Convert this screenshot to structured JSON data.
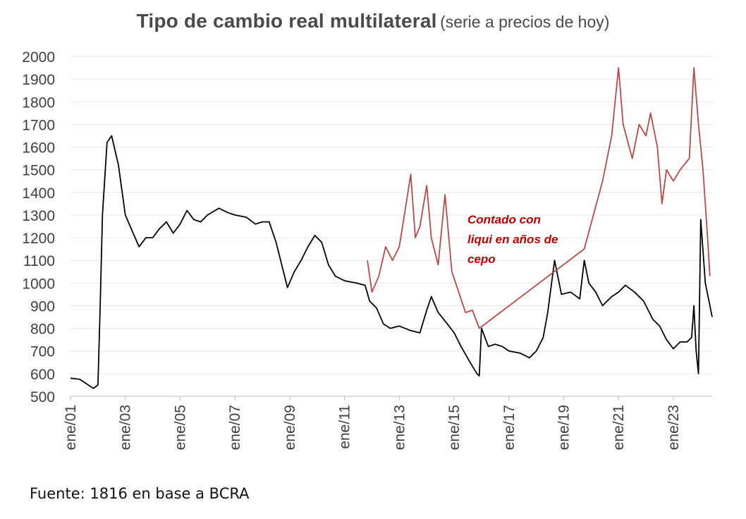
{
  "title": "Tipo de cambio real multilateral",
  "subtitle": "(serie a precios de hoy)",
  "source": "Fuente: 1816 en base a BCRA",
  "chart_data": {
    "type": "line",
    "title": "Tipo de cambio real multilateral",
    "subtitle": "(serie a precios de hoy)",
    "xlabel": "",
    "ylabel": "",
    "ylim": [
      500,
      2000
    ],
    "xlim": [
      "2001-01",
      "2024-06"
    ],
    "yticks": [
      500,
      600,
      700,
      800,
      900,
      1000,
      1100,
      1200,
      1300,
      1400,
      1500,
      1600,
      1700,
      1800,
      1900,
      2000
    ],
    "xticks": [
      "ene/01",
      "ene/03",
      "ene/05",
      "ene/07",
      "ene/09",
      "ene/11",
      "ene/13",
      "ene/15",
      "ene/17",
      "ene/19",
      "ene/21",
      "ene/23"
    ],
    "xtick_dates": [
      "2001-01",
      "2003-01",
      "2005-01",
      "2007-01",
      "2009-01",
      "2011-01",
      "2013-01",
      "2015-01",
      "2017-01",
      "2019-01",
      "2021-01",
      "2023-01"
    ],
    "grid": true,
    "legend": "none",
    "annotation": {
      "text_lines": [
        "Contado con",
        "liqui en años de",
        "cepo"
      ],
      "color": "#c00000"
    },
    "series": [
      {
        "color": "#000000",
        "points": [
          [
            "2001-01",
            580
          ],
          [
            "2001-05",
            575
          ],
          [
            "2001-08",
            555
          ],
          [
            "2001-11",
            535
          ],
          [
            "2002-01",
            550
          ],
          [
            "2002-02",
            900
          ],
          [
            "2002-03",
            1300
          ],
          [
            "2002-05",
            1620
          ],
          [
            "2002-07",
            1650
          ],
          [
            "2002-10",
            1520
          ],
          [
            "2003-01",
            1300
          ],
          [
            "2003-04",
            1230
          ],
          [
            "2003-07",
            1160
          ],
          [
            "2003-10",
            1200
          ],
          [
            "2004-01",
            1200
          ],
          [
            "2004-04",
            1240
          ],
          [
            "2004-07",
            1270
          ],
          [
            "2004-10",
            1220
          ],
          [
            "2005-01",
            1260
          ],
          [
            "2005-04",
            1320
          ],
          [
            "2005-07",
            1280
          ],
          [
            "2005-10",
            1270
          ],
          [
            "2006-01",
            1300
          ],
          [
            "2006-06",
            1330
          ],
          [
            "2006-10",
            1310
          ],
          [
            "2007-01",
            1300
          ],
          [
            "2007-06",
            1290
          ],
          [
            "2007-10",
            1260
          ],
          [
            "2008-01",
            1270
          ],
          [
            "2008-04",
            1270
          ],
          [
            "2008-07",
            1180
          ],
          [
            "2008-10",
            1060
          ],
          [
            "2008-12",
            980
          ],
          [
            "2009-03",
            1050
          ],
          [
            "2009-06",
            1100
          ],
          [
            "2009-09",
            1160
          ],
          [
            "2009-12",
            1210
          ],
          [
            "2010-03",
            1180
          ],
          [
            "2010-06",
            1080
          ],
          [
            "2010-09",
            1030
          ],
          [
            "2011-01",
            1010
          ],
          [
            "2011-06",
            1000
          ],
          [
            "2011-10",
            990
          ],
          [
            "2011-12",
            920
          ],
          [
            "2012-03",
            890
          ],
          [
            "2012-06",
            820
          ],
          [
            "2012-09",
            800
          ],
          [
            "2013-01",
            810
          ],
          [
            "2013-06",
            790
          ],
          [
            "2013-10",
            780
          ],
          [
            "2014-01",
            880
          ],
          [
            "2014-03",
            940
          ],
          [
            "2014-06",
            870
          ],
          [
            "2014-10",
            820
          ],
          [
            "2015-01",
            780
          ],
          [
            "2015-04",
            720
          ],
          [
            "2015-08",
            650
          ],
          [
            "2015-11",
            600
          ],
          [
            "2015-12",
            590
          ],
          [
            "2016-01",
            800
          ],
          [
            "2016-04",
            720
          ],
          [
            "2016-07",
            730
          ],
          [
            "2016-10",
            720
          ],
          [
            "2017-01",
            700
          ],
          [
            "2017-06",
            690
          ],
          [
            "2017-10",
            670
          ],
          [
            "2018-01",
            700
          ],
          [
            "2018-04",
            760
          ],
          [
            "2018-06",
            870
          ],
          [
            "2018-09",
            1100
          ],
          [
            "2018-12",
            950
          ],
          [
            "2019-04",
            960
          ],
          [
            "2019-08",
            930
          ],
          [
            "2019-10",
            1100
          ],
          [
            "2019-12",
            1000
          ],
          [
            "2020-03",
            960
          ],
          [
            "2020-06",
            900
          ],
          [
            "2020-10",
            940
          ],
          [
            "2021-01",
            960
          ],
          [
            "2021-04",
            990
          ],
          [
            "2021-08",
            960
          ],
          [
            "2021-12",
            920
          ],
          [
            "2022-04",
            840
          ],
          [
            "2022-07",
            810
          ],
          [
            "2022-10",
            750
          ],
          [
            "2023-01",
            710
          ],
          [
            "2023-04",
            740
          ],
          [
            "2023-07",
            740
          ],
          [
            "2023-09",
            760
          ],
          [
            "2023-10",
            900
          ],
          [
            "2023-11",
            700
          ],
          [
            "2023-12",
            600
          ],
          [
            "2024-01",
            1280
          ],
          [
            "2024-03",
            1000
          ],
          [
            "2024-05",
            900
          ],
          [
            "2024-06",
            850
          ]
        ]
      },
      {
        "color": "#b84a4a",
        "points": [
          [
            "2011-11",
            1100
          ],
          [
            "2012-01",
            960
          ],
          [
            "2012-04",
            1030
          ],
          [
            "2012-07",
            1160
          ],
          [
            "2012-10",
            1100
          ],
          [
            "2013-01",
            1160
          ],
          [
            "2013-04",
            1350
          ],
          [
            "2013-06",
            1480
          ],
          [
            "2013-08",
            1200
          ],
          [
            "2013-10",
            1250
          ],
          [
            "2014-01",
            1430
          ],
          [
            "2014-03",
            1200
          ],
          [
            "2014-06",
            1080
          ],
          [
            "2014-09",
            1390
          ],
          [
            "2014-12",
            1050
          ],
          [
            "2015-03",
            960
          ],
          [
            "2015-06",
            870
          ],
          [
            "2015-09",
            880
          ],
          [
            "2015-12",
            800
          ],
          [
            "2019-10",
            1150
          ],
          [
            "2020-02",
            1300
          ],
          [
            "2020-06",
            1450
          ],
          [
            "2020-10",
            1650
          ],
          [
            "2021-01",
            1950
          ],
          [
            "2021-03",
            1700
          ],
          [
            "2021-07",
            1550
          ],
          [
            "2021-10",
            1700
          ],
          [
            "2022-01",
            1650
          ],
          [
            "2022-03",
            1750
          ],
          [
            "2022-06",
            1600
          ],
          [
            "2022-08",
            1350
          ],
          [
            "2022-10",
            1500
          ],
          [
            "2023-01",
            1450
          ],
          [
            "2023-04",
            1500
          ],
          [
            "2023-08",
            1550
          ],
          [
            "2023-10",
            1950
          ],
          [
            "2023-12",
            1700
          ],
          [
            "2024-02",
            1500
          ],
          [
            "2024-04",
            1200
          ],
          [
            "2024-05",
            1030
          ]
        ]
      }
    ]
  }
}
